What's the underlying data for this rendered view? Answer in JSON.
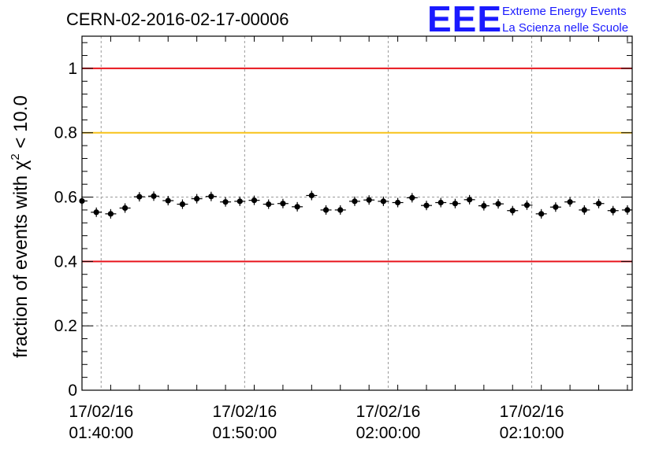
{
  "chart_data": {
    "type": "scatter",
    "title": "CERN-02-2016-02-17-00006",
    "ylabel": "fraction of events with χ² < 10.0",
    "ylabel_main": "fraction of events with χ",
    "ylabel_sup": "2",
    "ylabel_tail": " < 10.0",
    "xlabel": "",
    "x_axis_type": "time",
    "xlim": [
      "2016-02-17 01:38:40",
      "2016-02-17 02:17:00"
    ],
    "ylim": [
      0,
      1.1
    ],
    "grid": true,
    "x_ticks": [
      {
        "time": "2016-02-17 01:40:00",
        "date_label": "17/02/16",
        "time_label": "01:40:00"
      },
      {
        "time": "2016-02-17 01:50:00",
        "date_label": "17/02/16",
        "time_label": "01:50:00"
      },
      {
        "time": "2016-02-17 02:00:00",
        "date_label": "17/02/16",
        "time_label": "02:00:00"
      },
      {
        "time": "2016-02-17 02:10:00",
        "date_label": "17/02/16",
        "time_label": "02:10:00"
      }
    ],
    "y_ticks": [
      "0",
      "0.2",
      "0.4",
      "0.6",
      "0.8",
      "1"
    ],
    "y_tick_values": [
      0,
      0.2,
      0.4,
      0.6,
      0.8,
      1.0
    ],
    "reference_lines": [
      {
        "y": 1.0,
        "color": "#e8141c"
      },
      {
        "y": 0.8,
        "color": "#f7c21a"
      },
      {
        "y": 0.4,
        "color": "#e8141c"
      }
    ],
    "series": [
      {
        "color": "#000000",
        "x": [
          "2016-02-17 01:38:40",
          "2016-02-17 01:39:40",
          "2016-02-17 01:40:40",
          "2016-02-17 01:41:40",
          "2016-02-17 01:42:40",
          "2016-02-17 01:43:40",
          "2016-02-17 01:44:40",
          "2016-02-17 01:45:40",
          "2016-02-17 01:46:40",
          "2016-02-17 01:47:40",
          "2016-02-17 01:48:40",
          "2016-02-17 01:49:40",
          "2016-02-17 01:50:40",
          "2016-02-17 01:51:40",
          "2016-02-17 01:52:40",
          "2016-02-17 01:53:40",
          "2016-02-17 01:54:40",
          "2016-02-17 01:55:40",
          "2016-02-17 01:56:40",
          "2016-02-17 01:57:40",
          "2016-02-17 01:58:40",
          "2016-02-17 01:59:40",
          "2016-02-17 02:00:40",
          "2016-02-17 02:01:40",
          "2016-02-17 02:02:40",
          "2016-02-17 02:03:40",
          "2016-02-17 02:04:40",
          "2016-02-17 02:05:40",
          "2016-02-17 02:06:40",
          "2016-02-17 02:07:40",
          "2016-02-17 02:08:40",
          "2016-02-17 02:09:40",
          "2016-02-17 02:10:40",
          "2016-02-17 02:11:40",
          "2016-02-17 02:12:40",
          "2016-02-17 02:13:40",
          "2016-02-17 02:14:40",
          "2016-02-17 02:15:40",
          "2016-02-17 02:16:40"
        ],
        "y": [
          0.588,
          0.553,
          0.548,
          0.566,
          0.601,
          0.603,
          0.589,
          0.578,
          0.595,
          0.602,
          0.585,
          0.587,
          0.59,
          0.578,
          0.58,
          0.57,
          0.605,
          0.56,
          0.56,
          0.587,
          0.591,
          0.587,
          0.583,
          0.598,
          0.574,
          0.583,
          0.58,
          0.592,
          0.573,
          0.579,
          0.558,
          0.575,
          0.548,
          0.569,
          0.585,
          0.56,
          0.58,
          0.558,
          0.56
        ]
      }
    ]
  },
  "logo": {
    "mark": "EEE",
    "line1": "Extreme Energy Events",
    "line2": "La Scienza nelle Scuole"
  }
}
